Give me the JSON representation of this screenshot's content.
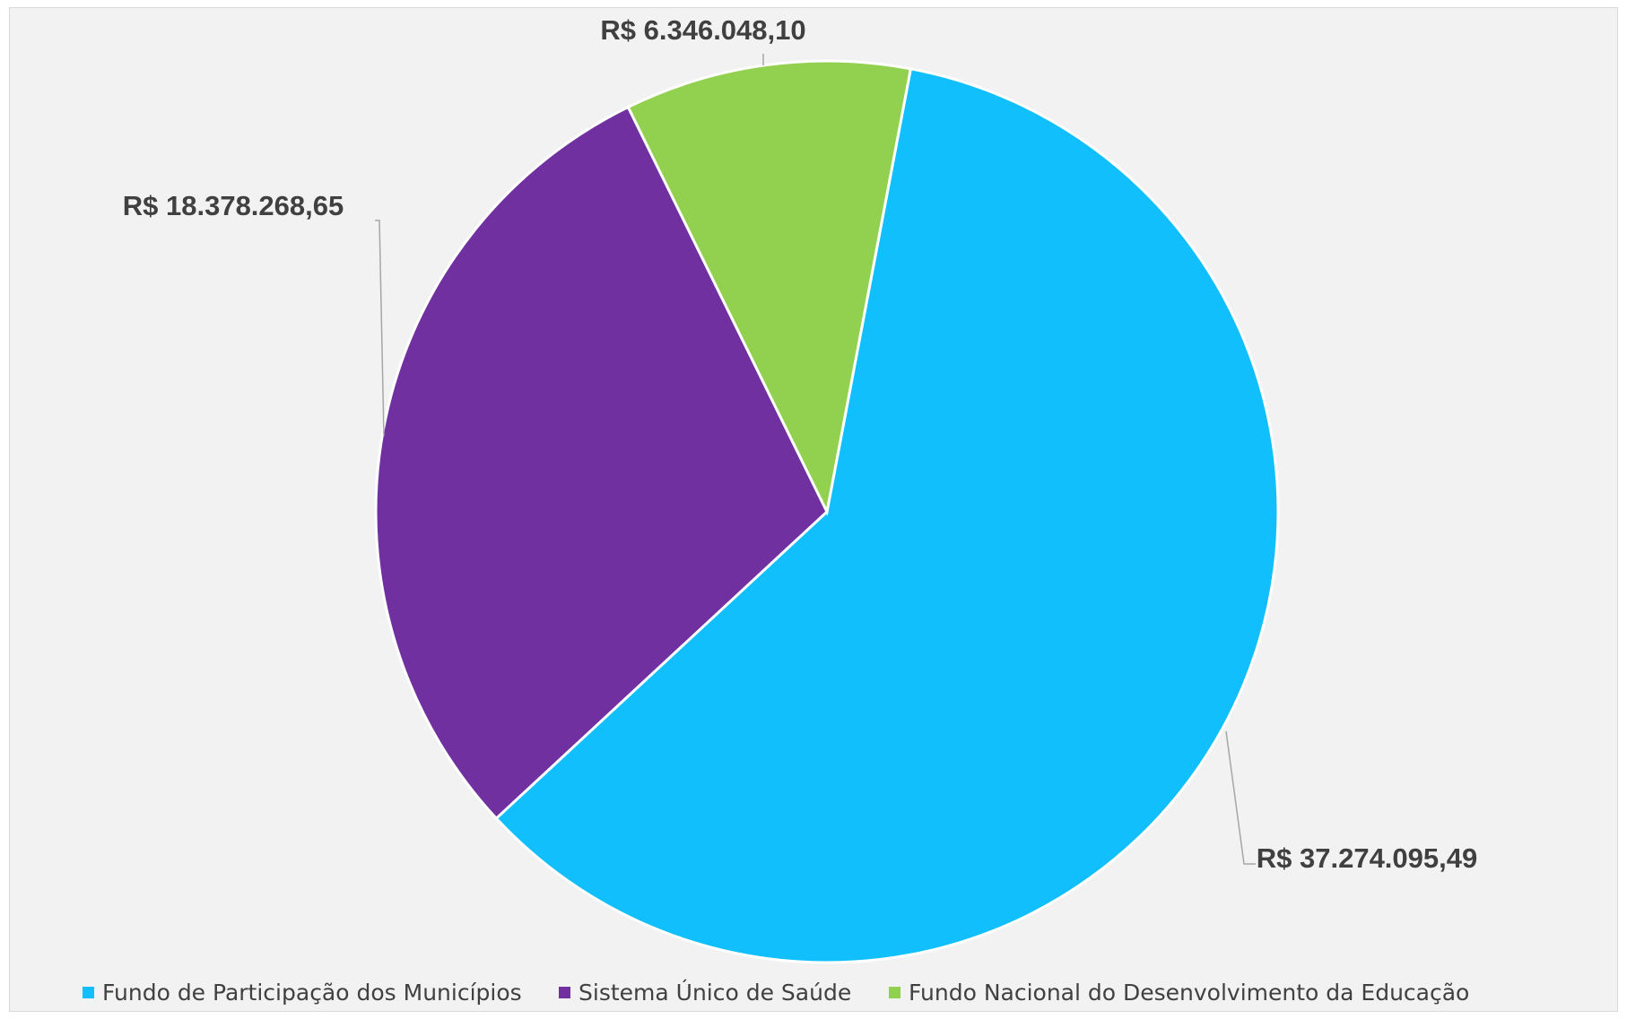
{
  "chart_data": {
    "type": "pie",
    "title": "",
    "categories": [
      "Fundo de Participação dos Municípios",
      "Sistema Único de Saúde",
      "Fundo Nacional do Desenvolvimento da Educação"
    ],
    "values": [
      37274095.49,
      18378268.65,
      6346048.1
    ],
    "labels": [
      "R$ 37.274.095,49",
      "R$ 18.378.268,65",
      "R$ 6.346.048,10"
    ],
    "colors": [
      "#10bffc",
      "#7030a0",
      "#92d050"
    ],
    "legend_position": "bottom"
  }
}
